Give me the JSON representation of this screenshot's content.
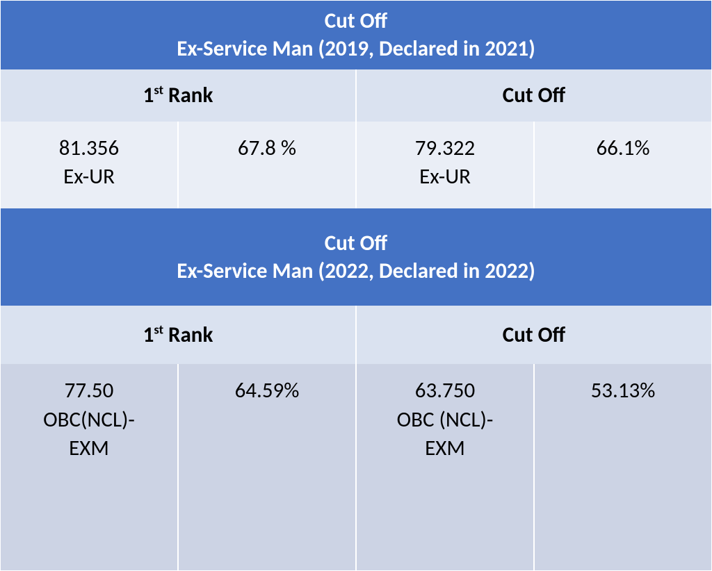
{
  "colors": {
    "title_bg": "#4472c4",
    "title_text": "#ffffff",
    "header_bg": "#dae2f0",
    "data_bg_1": "#eaeef6",
    "data_bg_2": "#ccd3e4",
    "text": "#000000",
    "border": "#ffffff"
  },
  "typography": {
    "font_family": "Calibri",
    "title_fontsize": 31,
    "title_fontweight": "bold",
    "cell_fontsize": 31
  },
  "sections": [
    {
      "title_line1": "Cut Off",
      "title_line2": "Ex-Service Man (2019, Declared in 2021)",
      "headers": {
        "col1": "1",
        "col1_sup": "st",
        "col1_rest": " Rank",
        "col2": "Cut Off"
      },
      "row": {
        "c1_l1": "81.356",
        "c1_l2": "Ex-UR",
        "c2": "67.8 %",
        "c3_l1": "79.322",
        "c3_l2": "Ex-UR",
        "c4": "66.1%"
      }
    },
    {
      "title_line1": "Cut Off",
      "title_line2": "Ex-Service Man (2022, Declared in 2022)",
      "headers": {
        "col1": "1",
        "col1_sup": "st",
        "col1_rest": " Rank",
        "col2": "Cut Off"
      },
      "row": {
        "c1_l1": "77.50",
        "c1_l2": "OBC(NCL)-",
        "c1_l3": "EXM",
        "c2": "64.59%",
        "c3_l1": "63.750",
        "c3_l2": "OBC (NCL)-",
        "c3_l3": "EXM",
        "c4": "53.13%"
      }
    }
  ]
}
